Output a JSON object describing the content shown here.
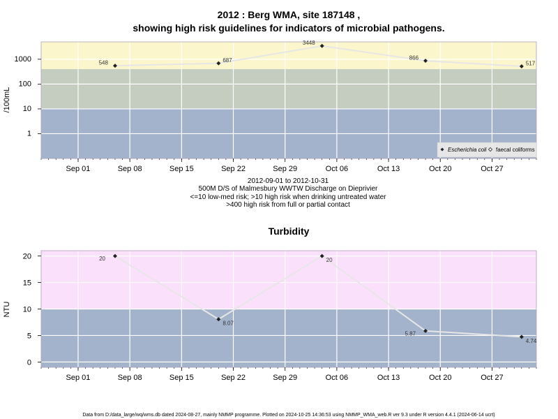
{
  "chart_data": [
    {
      "type": "line",
      "title_line1": "2012 : Berg WMA, site 187148 ,",
      "title_line2": "showing high risk guidelines for indicators of microbial pathogens.",
      "ylabel": "/100mL",
      "yscale": "log10",
      "ylim": [
        0.1,
        5000
      ],
      "yticks": [
        "1",
        "10",
        "100",
        "1000"
      ],
      "xlim": [
        "2012-08-27",
        "2012-11-02"
      ],
      "xticks": [
        "Sep 01",
        "Sep 08",
        "Sep 15",
        "Sep 22",
        "Sep 29",
        "Oct 06",
        "Oct 13",
        "Oct 20",
        "Oct 27"
      ],
      "bands": [
        {
          "from": 0.1,
          "to": 10,
          "color": "#a3b3cb"
        },
        {
          "from": 10,
          "to": 400,
          "color": "#c5cdc0"
        },
        {
          "from": 400,
          "to": 5000,
          "color": "#fcf6cc"
        }
      ],
      "series": [
        {
          "name": "Escherichia coli",
          "marker": "filled-diamond",
          "line_color": "#e6e6e6",
          "x": [
            "2012-09-06",
            "2012-09-20",
            "2012-10-04",
            "2012-10-18",
            "2012-10-31"
          ],
          "y": [
            548,
            687,
            3448,
            866,
            517
          ],
          "labels": [
            "548",
            "687",
            "3448",
            "866",
            "517"
          ]
        }
      ],
      "legend": {
        "position": "bottom-right",
        "entries": [
          {
            "label": "Escherichia coli",
            "italic": true,
            "marker": "filled-diamond"
          },
          {
            "label": "faecal coliforms",
            "italic": false,
            "marker": "open-diamond"
          }
        ]
      }
    },
    {
      "type": "line",
      "title": "Turbidity",
      "ylabel": "NTU",
      "ylim": [
        -1,
        21
      ],
      "yticks": [
        "0",
        "5",
        "10",
        "15",
        "20"
      ],
      "xlim": [
        "2012-08-27",
        "2012-11-02"
      ],
      "xticks": [
        "Sep 01",
        "Sep 08",
        "Sep 15",
        "Sep 22",
        "Sep 29",
        "Oct 06",
        "Oct 13",
        "Oct 20",
        "Oct 27"
      ],
      "bands": [
        {
          "from": -1,
          "to": 10,
          "color": "#a3b3cb"
        },
        {
          "from": 10,
          "to": 21,
          "color": "#fbe0fb"
        }
      ],
      "series": [
        {
          "marker": "filled-diamond",
          "line_color": "#e6e6e6",
          "x": [
            "2012-09-06",
            "2012-09-20",
            "2012-10-04",
            "2012-10-18",
            "2012-10-31"
          ],
          "y": [
            20,
            8.07,
            20,
            5.87,
            4.74
          ],
          "labels": [
            "20",
            "8.07",
            "20",
            "5.87",
            "4.74"
          ]
        }
      ]
    }
  ],
  "caption": {
    "line1": "2012-09-01 to 2012-10-31",
    "line2": "500M D/S of Malmesbury WWTW Discharge on Dieprivier",
    "line3": "<=10 low-med risk; >10 high risk when drinking untreated water",
    "line4": ">400 high risk from full or partial contact"
  },
  "footer": "Data from D:/data_large/wq/wms.db dated 2024-08-27, mainly NMMP programme. Plotted on 2024-10-25 14:36:53 using NMMP_WMA_web.R ver 9.3 under R version 4.4.1 (2024-06-14 ucrt)"
}
